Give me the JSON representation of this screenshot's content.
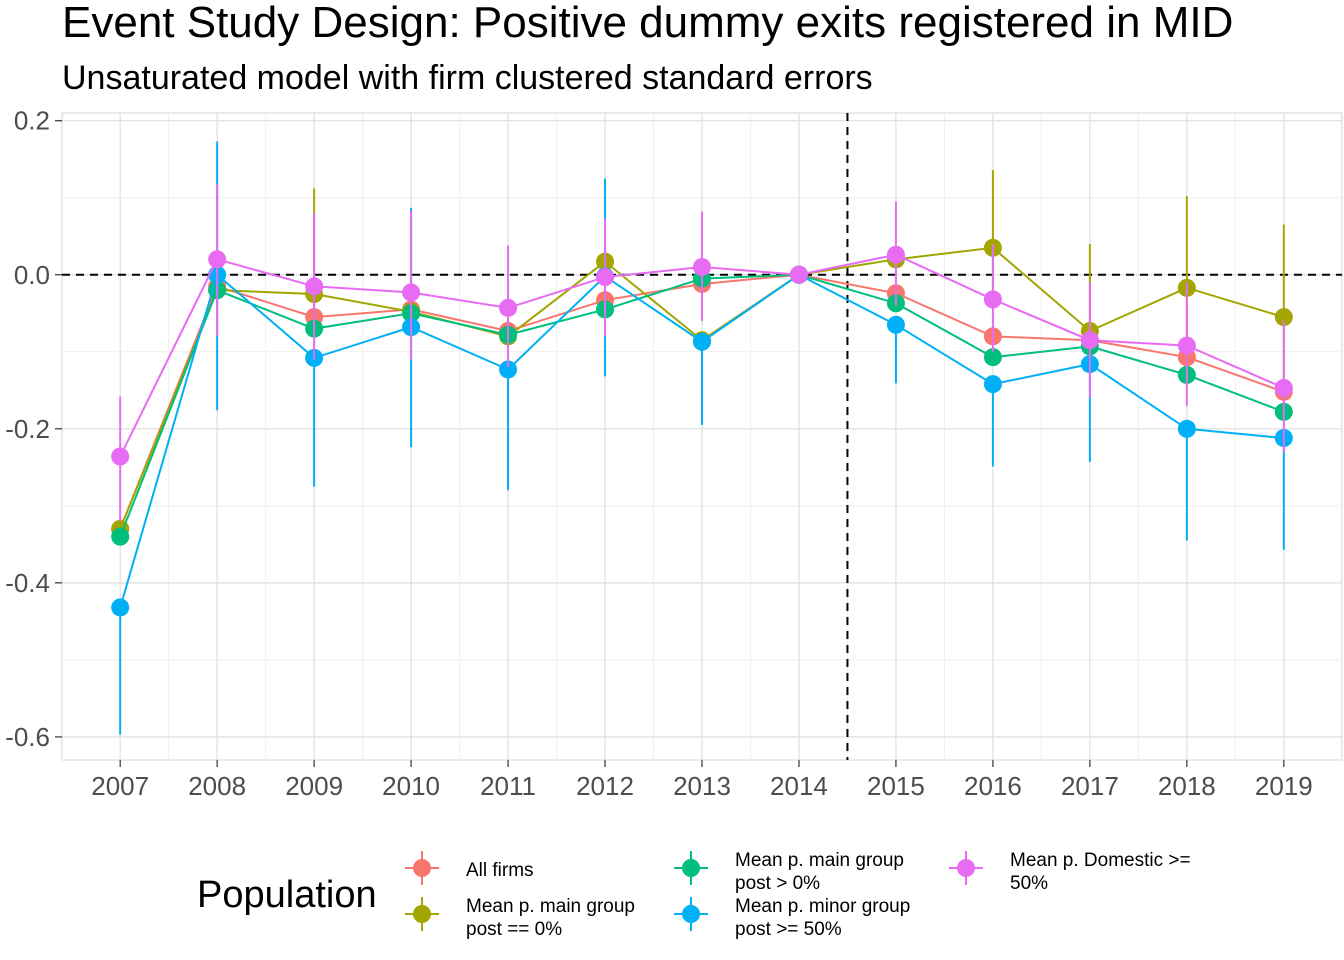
{
  "chart_data": {
    "type": "line",
    "title": "Event Study Design: Positive dummy exits registered in MID",
    "subtitle": "Unsaturated model with firm clustered standard errors",
    "xlabel": "",
    "ylabel": "",
    "x": [
      2007,
      2008,
      2009,
      2010,
      2011,
      2012,
      2013,
      2014,
      2015,
      2016,
      2017,
      2018,
      2019
    ],
    "x_tick_labels": [
      "2007",
      "2008",
      "2009",
      "2010",
      "2011",
      "2012",
      "2013",
      "2014",
      "2015",
      "2016",
      "2017",
      "2018",
      "2019"
    ],
    "ylim": [
      -0.63,
      0.21
    ],
    "y_ticks": [
      0.2,
      0.0,
      -0.2,
      -0.4,
      -0.6
    ],
    "y_tick_labels": [
      "0.2",
      "0.0",
      "-0.2",
      "-0.4",
      "-0.6"
    ],
    "reference_lines": {
      "horizontal_y": 0.0,
      "vertical_x": 2014.5,
      "style": "dashed"
    },
    "grid": true,
    "legend": {
      "title": "Population",
      "position": "bottom",
      "entries": [
        [
          "All firms"
        ],
        [
          "Mean p. main group",
          "post == 0%"
        ],
        [
          "Mean p. main group",
          "post > 0%"
        ],
        [
          "Mean p. minor group",
          "post >= 50%"
        ],
        [
          "Mean p. Domestic >=",
          "50%"
        ]
      ]
    },
    "series": [
      {
        "name": "All firms",
        "color": "#F8766D",
        "values": [
          -0.33,
          -0.015,
          -0.055,
          -0.045,
          -0.073,
          -0.033,
          -0.012,
          0.0,
          -0.024,
          -0.08,
          -0.085,
          -0.107,
          -0.152
        ],
        "lower": [
          null,
          null,
          null,
          null,
          null,
          null,
          null,
          null,
          null,
          null,
          null,
          null,
          null
        ],
        "upper": [
          null,
          null,
          null,
          null,
          null,
          null,
          null,
          null,
          null,
          null,
          null,
          null,
          null
        ]
      },
      {
        "name": "Mean p. main group post == 0%",
        "color": "#A3A500",
        "values": [
          -0.33,
          -0.02,
          -0.025,
          -0.048,
          -0.08,
          0.017,
          -0.085,
          0.0,
          0.02,
          0.035,
          -0.073,
          -0.017,
          -0.055
        ],
        "lower": [
          null,
          null,
          -0.07,
          null,
          null,
          null,
          null,
          null,
          null,
          -0.03,
          null,
          -0.12,
          -0.18
        ],
        "upper": [
          null,
          null,
          0.112,
          null,
          null,
          null,
          null,
          null,
          null,
          0.136,
          0.04,
          0.102,
          0.065
        ]
      },
      {
        "name": "Mean p. main group post > 0%",
        "color": "#00BF7D",
        "values": [
          -0.34,
          -0.02,
          -0.07,
          -0.05,
          -0.078,
          -0.045,
          -0.005,
          0.0,
          -0.037,
          -0.107,
          -0.093,
          -0.13,
          -0.178
        ],
        "lower": [
          null,
          null,
          null,
          null,
          null,
          null,
          null,
          null,
          null,
          null,
          null,
          null,
          null
        ],
        "upper": [
          null,
          null,
          null,
          null,
          null,
          null,
          null,
          null,
          null,
          null,
          null,
          null,
          null
        ]
      },
      {
        "name": "Mean p. minor group post >= 50%",
        "color": "#00B0F6",
        "values": [
          -0.432,
          0.0,
          -0.108,
          -0.068,
          -0.123,
          -0.002,
          -0.087,
          0.0,
          -0.065,
          -0.142,
          -0.116,
          -0.2,
          -0.212
        ],
        "lower": [
          -0.597,
          -0.176,
          -0.275,
          -0.224,
          -0.28,
          -0.132,
          -0.195,
          null,
          -0.141,
          -0.249,
          -0.243,
          -0.345,
          -0.357
        ],
        "upper": [
          null,
          0.173,
          null,
          0.087,
          null,
          0.125,
          null,
          null,
          null,
          null,
          null,
          null,
          null
        ]
      },
      {
        "name": "Mean p. Domestic >= 50%",
        "color": "#E76BF3",
        "values": [
          -0.236,
          0.02,
          -0.015,
          -0.023,
          -0.043,
          -0.003,
          0.01,
          0.0,
          0.026,
          -0.032,
          -0.085,
          -0.092,
          -0.147
        ],
        "lower": [
          -0.32,
          -0.08,
          -0.11,
          -0.11,
          -0.12,
          -0.08,
          -0.06,
          null,
          -0.04,
          -0.1,
          -0.16,
          -0.17,
          -0.23
        ],
        "upper": [
          -0.158,
          0.118,
          0.08,
          0.083,
          0.038,
          0.073,
          0.082,
          null,
          0.095,
          0.04,
          -0.01,
          -0.01,
          -0.06
        ]
      }
    ]
  }
}
